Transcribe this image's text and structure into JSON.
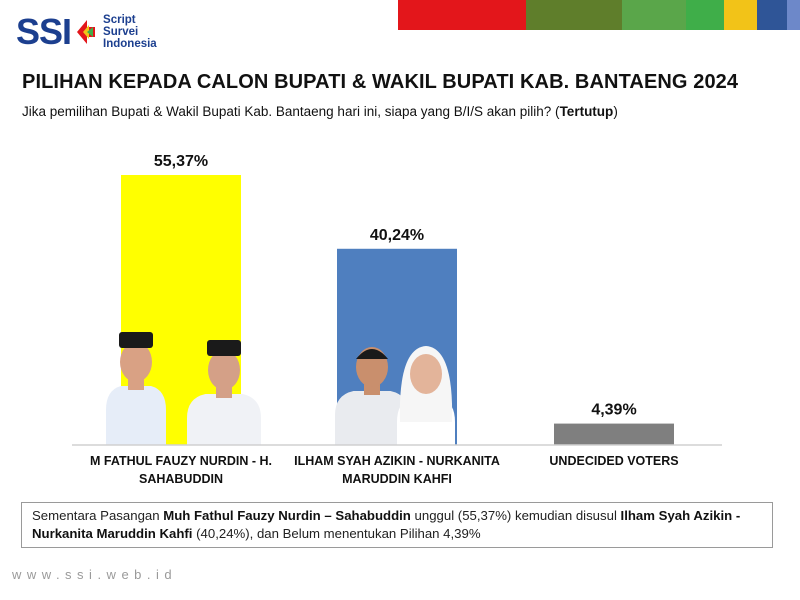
{
  "logo": {
    "mark": "SSI",
    "lines": [
      "Script",
      "Survei",
      "Indonesia"
    ]
  },
  "colors": {
    "strip": [
      "#e3161b",
      "#5f7e2b",
      "#5aa64a",
      "#3fae49",
      "#f2c318",
      "#2f5597",
      "#6d88c9"
    ],
    "bar1": "#ffff00",
    "bar2": "#4f7fbf",
    "bar3": "#7f7f7f"
  },
  "title": "PILIHAN KEPADA CALON BUPATI & WAKIL BUPATI KAB. BANTAENG 2024",
  "subtitle_main": "Jika pemilihan Bupati & Wakil Bupati Kab. Bantaeng hari ini, siapa yang B/I/S akan pilih? (",
  "subtitle_bold": "Tertutup",
  "subtitle_end": ")",
  "chart_data": {
    "type": "bar",
    "categories": [
      "M FATHUL FAUZY NURDIN - H. SAHABUDDIN",
      "ILHAM SYAH AZIKIN - NURKANITA MARUDDIN KAHFI",
      "UNDECIDED VOTERS"
    ],
    "category_lines": [
      [
        "M FATHUL FAUZY NURDIN - H.",
        "SAHABUDDIN"
      ],
      [
        "ILHAM SYAH AZIKIN - NURKANITA",
        "MARUDDIN KAHFI"
      ],
      [
        "UNDECIDED VOTERS"
      ]
    ],
    "values": [
      55.37,
      40.24,
      4.39
    ],
    "data_labels": [
      "55,37%",
      "40,24%",
      "4,39%"
    ],
    "ylim": [
      0,
      60
    ],
    "grid": false,
    "legend": "none"
  },
  "summary": {
    "p1": "Sementara Pasangan ",
    "b1": "Muh Fathul Fauzy Nurdin – Sahabuddin",
    "p2": " unggul (55,37%) kemudian disusul ",
    "b2": "Ilham Syah Azikin - Nurkanita Maruddin Kahfi",
    "p3": " (40,24%), dan Belum menentukan Pilihan 4,39%"
  },
  "footer": "www.ssi.web.id"
}
